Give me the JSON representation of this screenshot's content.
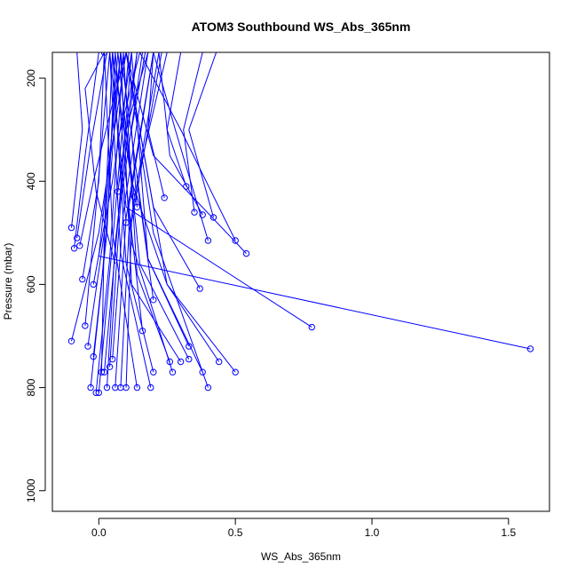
{
  "chart_data": {
    "type": "line",
    "title": "ATOM3 Southbound WS_Abs_365nm",
    "xlabel": "WS_Abs_365nm",
    "ylabel": "Pressure (mbar)",
    "xlim": [
      -0.17,
      1.65
    ],
    "ylim": [
      1040,
      150
    ],
    "y_reversed": true,
    "grid": false,
    "legend": "none",
    "x_ticks": [
      0.0,
      0.5,
      1.0,
      1.5
    ],
    "x_tick_labels": [
      "0.0",
      "0.5",
      "1.0",
      "1.5"
    ],
    "y_ticks": [
      200,
      400,
      600,
      800,
      1000
    ],
    "y_tick_labels": [
      "200",
      "400",
      "600",
      "800",
      "1000"
    ],
    "series_color": "#0000ff",
    "series": [
      {
        "x": [
          0.02,
          -0.05,
          -0.01,
          0.06
        ],
        "y": [
          150,
          220,
          420,
          560
        ]
      },
      {
        "x": [
          -0.1,
          -0.06,
          -0.08
        ],
        "y": [
          490,
          300,
          150
        ]
      },
      {
        "x": [
          -0.09,
          -0.05,
          0.0
        ],
        "y": [
          530,
          350,
          150
        ]
      },
      {
        "x": [
          -0.08,
          -0.03,
          0.03
        ],
        "y": [
          510,
          330,
          150
        ]
      },
      {
        "x": [
          -0.07,
          -0.02,
          0.05,
          0.1
        ],
        "y": [
          525,
          400,
          250,
          150
        ]
      },
      {
        "x": [
          -0.06,
          0.0,
          0.02
        ],
        "y": [
          590,
          400,
          150
        ]
      },
      {
        "x": [
          -0.05,
          -0.01,
          0.04
        ],
        "y": [
          680,
          450,
          150
        ]
      },
      {
        "x": [
          -0.04,
          0.02,
          0.07
        ],
        "y": [
          720,
          500,
          150
        ]
      },
      {
        "x": [
          -0.03,
          0.01,
          0.08
        ],
        "y": [
          800,
          600,
          150
        ]
      },
      {
        "x": [
          -0.02,
          0.03,
          0.06
        ],
        "y": [
          740,
          500,
          150
        ]
      },
      {
        "x": [
          -0.01,
          0.04,
          0.09
        ],
        "y": [
          810,
          550,
          150
        ]
      },
      {
        "x": [
          0.0,
          0.05,
          0.11
        ],
        "y": [
          810,
          520,
          150
        ]
      },
      {
        "x": [
          0.01,
          0.02,
          0.05
        ],
        "y": [
          770,
          500,
          150
        ]
      },
      {
        "x": [
          0.02,
          0.07,
          0.12
        ],
        "y": [
          770,
          480,
          150
        ]
      },
      {
        "x": [
          0.03,
          0.06,
          0.14
        ],
        "y": [
          800,
          520,
          150
        ]
      },
      {
        "x": [
          0.04,
          0.08,
          0.16
        ],
        "y": [
          760,
          440,
          150
        ]
      },
      {
        "x": [
          0.05,
          0.09,
          0.18
        ],
        "y": [
          745,
          460,
          150
        ]
      },
      {
        "x": [
          0.06,
          0.1,
          0.2
        ],
        "y": [
          800,
          470,
          150
        ]
      },
      {
        "x": [
          0.08,
          0.11,
          0.22
        ],
        "y": [
          800,
          500,
          150
        ]
      },
      {
        "x": [
          0.1,
          0.12,
          0.23
        ],
        "y": [
          800,
          480,
          150
        ]
      },
      {
        "x": [
          0.14,
          0.05,
          0.02
        ],
        "y": [
          800,
          500,
          150
        ]
      },
      {
        "x": [
          0.19,
          0.08,
          0.04
        ],
        "y": [
          800,
          540,
          150
        ]
      },
      {
        "x": [
          0.4,
          0.2,
          0.1
        ],
        "y": [
          800,
          500,
          150
        ]
      },
      {
        "x": [
          0.5,
          0.25,
          0.12,
          0.05
        ],
        "y": [
          770,
          600,
          400,
          150
        ]
      },
      {
        "x": [
          0.38,
          0.18,
          0.08
        ],
        "y": [
          770,
          550,
          150
        ]
      },
      {
        "x": [
          0.27,
          0.12,
          0.06
        ],
        "y": [
          770,
          520,
          150
        ]
      },
      {
        "x": [
          0.2,
          0.1,
          0.05
        ],
        "y": [
          770,
          560,
          150
        ]
      },
      {
        "x": [
          0.44,
          0.25,
          0.1
        ],
        "y": [
          750,
          600,
          150
        ]
      },
      {
        "x": [
          0.33,
          0.15,
          0.07
        ],
        "y": [
          745,
          560,
          150
        ]
      },
      {
        "x": [
          0.3,
          0.12,
          0.08
        ],
        "y": [
          750,
          600,
          150
        ]
      },
      {
        "x": [
          0.26,
          0.14,
          0.09
        ],
        "y": [
          750,
          580,
          150
        ]
      },
      {
        "x": [
          0.33,
          0.18,
          0.12
        ],
        "y": [
          720,
          550,
          150
        ]
      },
      {
        "x": [
          1.58,
          0.0,
          0.08
        ],
        "y": [
          725,
          545,
          150
        ]
      },
      {
        "x": [
          0.78,
          0.1,
          0.04
        ],
        "y": [
          683,
          450,
          150
        ]
      },
      {
        "x": [
          0.54,
          0.2,
          0.1
        ],
        "y": [
          540,
          350,
          150
        ]
      },
      {
        "x": [
          0.5,
          0.3,
          0.15
        ],
        "y": [
          515,
          300,
          150
        ]
      },
      {
        "x": [
          0.4,
          0.28,
          0.2
        ],
        "y": [
          515,
          300,
          150
        ]
      },
      {
        "x": [
          0.42,
          0.33,
          0.43
        ],
        "y": [
          470,
          300,
          150
        ]
      },
      {
        "x": [
          0.35,
          0.31,
          0.38
        ],
        "y": [
          460,
          300,
          150
        ]
      },
      {
        "x": [
          0.32,
          0.25,
          0.3
        ],
        "y": [
          410,
          300,
          150
        ]
      },
      {
        "x": [
          0.38,
          0.26,
          0.22
        ],
        "y": [
          465,
          350,
          150
        ]
      },
      {
        "x": [
          0.24,
          0.18,
          0.2
        ],
        "y": [
          432,
          300,
          150
        ]
      },
      {
        "x": [
          0.14,
          0.12,
          0.17
        ],
        "y": [
          450,
          300,
          150
        ]
      },
      {
        "x": [
          0.13,
          0.1,
          0.14
        ],
        "y": [
          430,
          300,
          150
        ]
      },
      {
        "x": [
          0.37,
          0.2,
          0.1
        ],
        "y": [
          608,
          450,
          150
        ]
      },
      {
        "x": [
          -0.1,
          0.0,
          0.1
        ],
        "y": [
          710,
          500,
          150
        ]
      },
      {
        "x": [
          -0.02,
          0.05,
          0.12
        ],
        "y": [
          600,
          400,
          150
        ]
      },
      {
        "x": [
          0.1,
          0.07,
          0.15
        ],
        "y": [
          480,
          320,
          150
        ]
      },
      {
        "x": [
          0.07,
          0.1,
          0.18
        ],
        "y": [
          420,
          300,
          150
        ]
      },
      {
        "x": [
          0.2,
          0.14,
          0.25
        ],
        "y": [
          630,
          400,
          150
        ]
      },
      {
        "x": [
          0.16,
          0.11,
          0.2
        ],
        "y": [
          690,
          450,
          150
        ]
      }
    ]
  }
}
